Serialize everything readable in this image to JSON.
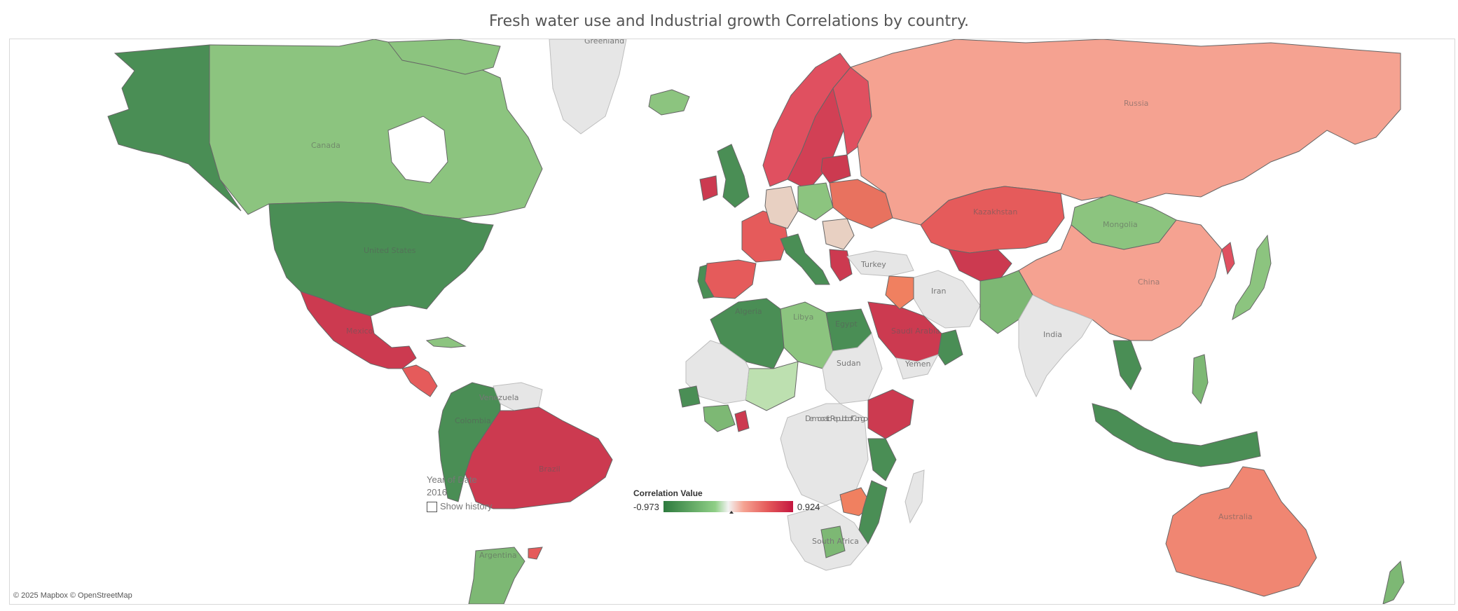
{
  "title": "Fresh water use and Industrial growth Correlations by country.",
  "attribution": "© 2025 Mapbox © OpenStreetMap",
  "filter": {
    "label": "Year of Date",
    "value": "2016",
    "show_history_label": "Show history",
    "show_history_checked": false
  },
  "legend": {
    "title": "Correlation Value",
    "min": "-0.973",
    "max": "0.924",
    "colors": [
      "#2d7a3e",
      "#8fcf86",
      "#f2f2f2",
      "#f5a291",
      "#e55b5b",
      "#c4163f"
    ]
  },
  "map_labels": {
    "greenland": "Greenland",
    "canada": "Canada",
    "united_states": "United States",
    "mexico": "Mexico",
    "venezuela": "Venezuela",
    "colombia": "Colombia",
    "brazil": "Brazil",
    "argentina": "Argentina",
    "russia": "Russia",
    "kazakhstan": "Kazakhstan",
    "mongolia": "Mongolia",
    "china": "China",
    "turkey": "Turkey",
    "iran": "Iran",
    "india": "India",
    "saudi_arabia": "Saudi Arabia",
    "yemen": "Yemen",
    "algeria": "Algeria",
    "libya": "Libya",
    "egypt": "Egypt",
    "sudan": "Sudan",
    "drc": "Democratic Republic of Congo",
    "south_africa": "South Africa",
    "australia": "Australia"
  }
}
